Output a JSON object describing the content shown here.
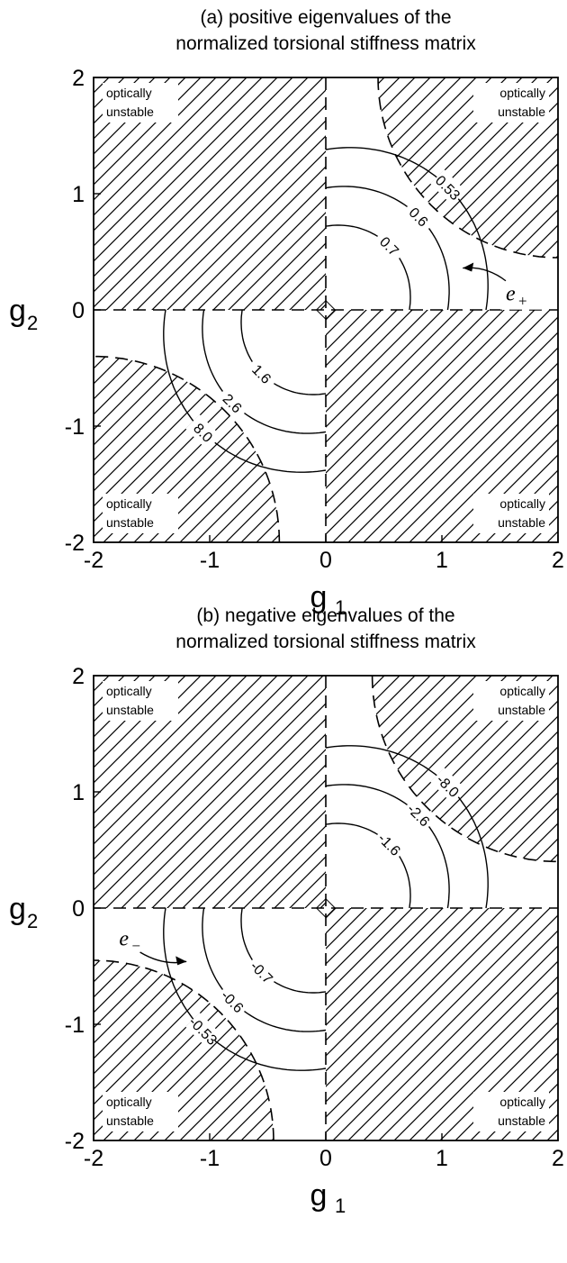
{
  "chart_data": [
    {
      "type": "contour",
      "panel": "a",
      "title_line1": "(a) positive eigenvalues of the",
      "title_line2": "normalized torsional stiffness matrix",
      "xlabel": "g",
      "xlabel_sub": "1",
      "ylabel": "g",
      "ylabel_sub": "2",
      "xlim": [
        -2,
        2
      ],
      "ylim": [
        -2,
        2
      ],
      "xticks": [
        "-2",
        "-1",
        "0",
        "1",
        "2"
      ],
      "yticks": [
        "2",
        "1",
        "0",
        "-1",
        "-2"
      ],
      "region_label_line1": "optically",
      "region_label_line2": "unstable",
      "curve_name": "e",
      "curve_sub": "+",
      "contours_upper_right": [
        {
          "level": "0.7",
          "value": 0.7
        },
        {
          "level": "0.6",
          "value": 0.6
        },
        {
          "level": "0.53",
          "value": 0.53
        }
      ],
      "contours_lower_left": [
        {
          "level": "1.6",
          "value": 1.6
        },
        {
          "level": "2.6",
          "value": 2.6
        },
        {
          "level": "8.0",
          "value": 8.0
        }
      ]
    },
    {
      "type": "contour",
      "panel": "b",
      "title_line1": "(b) negative eigenvalues of the",
      "title_line2": "normalized torsional stiffness matrix",
      "xlabel": "g",
      "xlabel_sub": "1",
      "ylabel": "g",
      "ylabel_sub": "2",
      "xlim": [
        -2,
        2
      ],
      "ylim": [
        -2,
        2
      ],
      "xticks": [
        "-2",
        "-1",
        "0",
        "1",
        "2"
      ],
      "yticks": [
        "2",
        "1",
        "0",
        "-1",
        "-2"
      ],
      "region_label_line1": "optically",
      "region_label_line2": "unstable",
      "curve_name": "e",
      "curve_sub": "−",
      "contours_upper_right": [
        {
          "level": "-1.6",
          "value": -1.6
        },
        {
          "level": "-2.6",
          "value": -2.6
        },
        {
          "level": "-8.0",
          "value": -8.0
        }
      ],
      "contours_lower_left": [
        {
          "level": "-0.7",
          "value": -0.7
        },
        {
          "level": "-0.6",
          "value": -0.6
        },
        {
          "level": "-0.53",
          "value": -0.53
        }
      ]
    }
  ]
}
